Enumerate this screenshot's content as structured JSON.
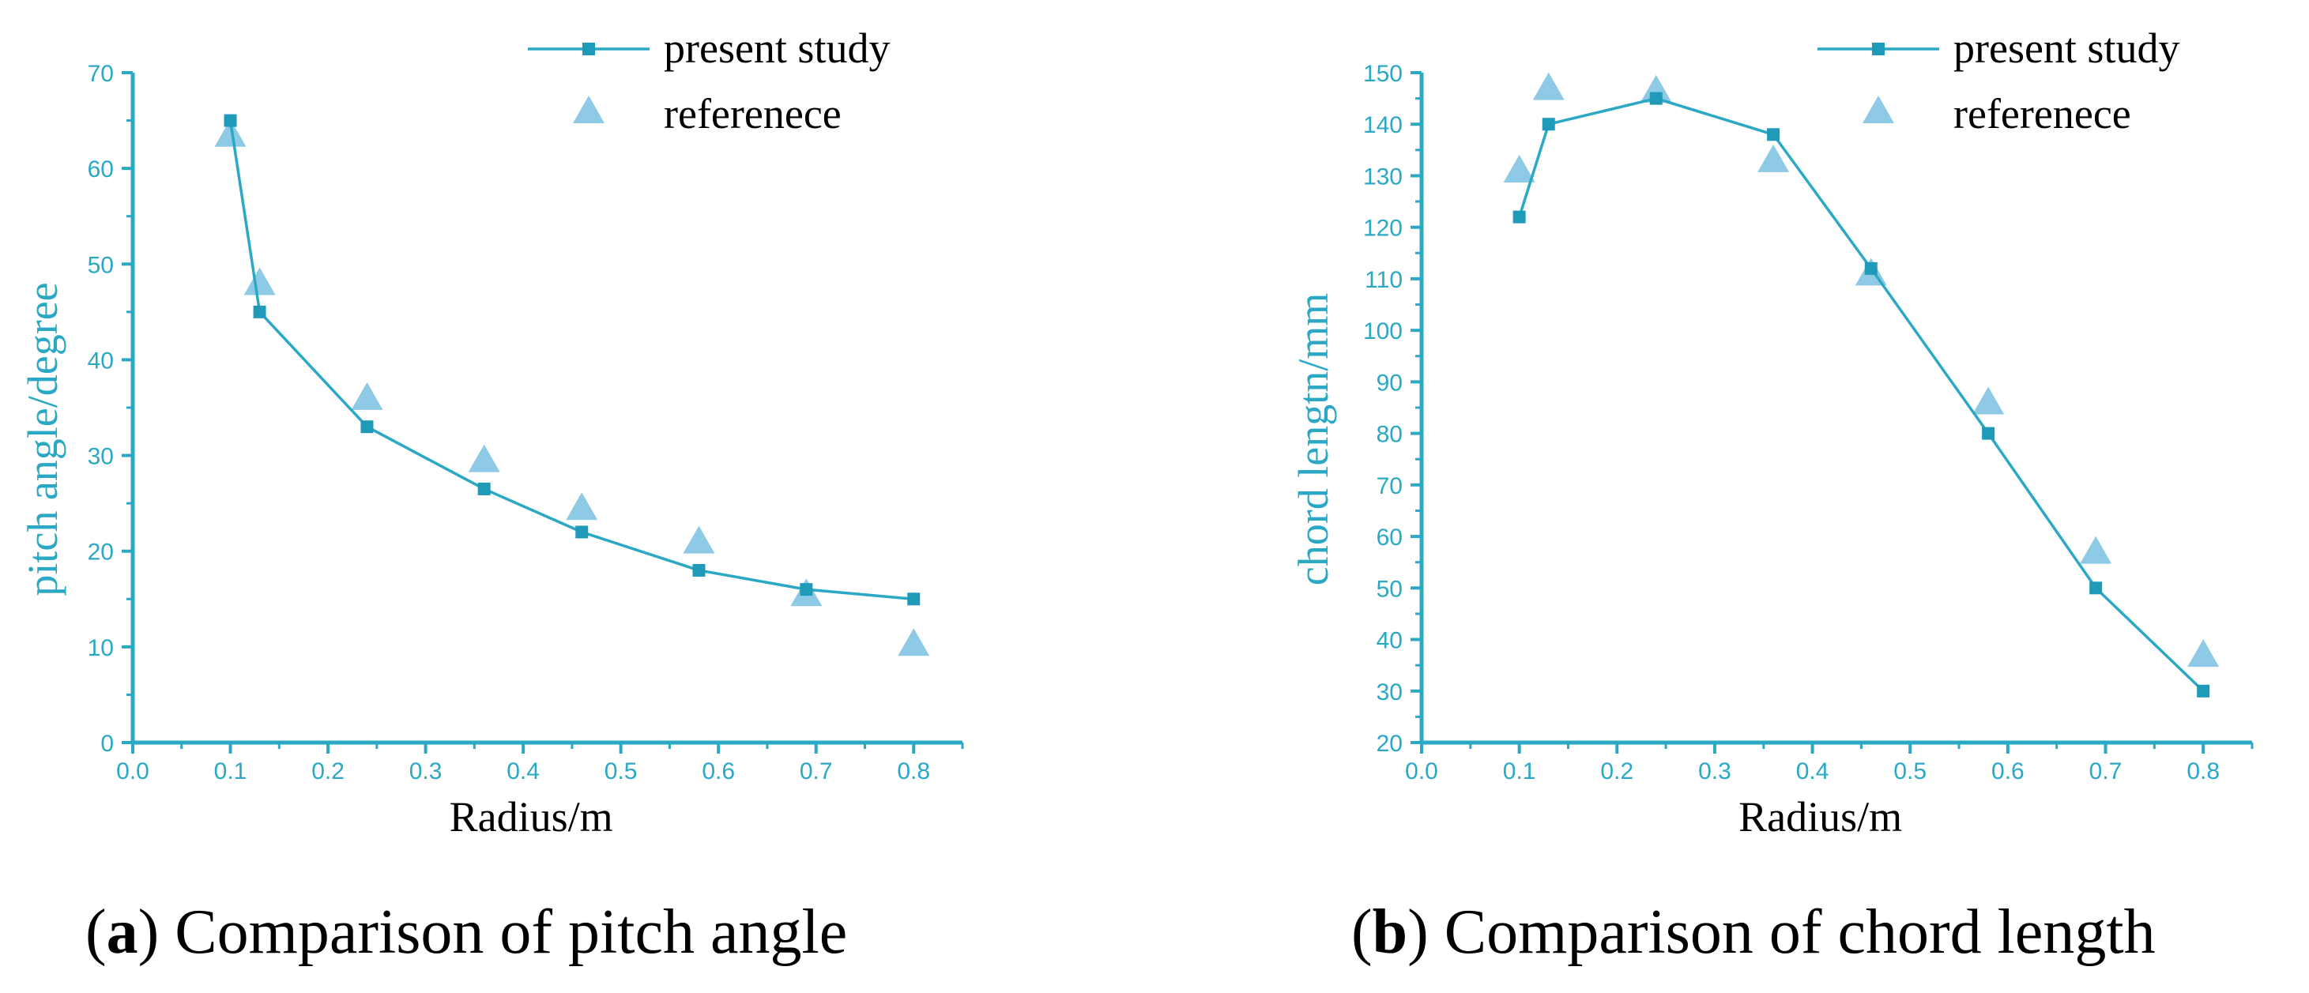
{
  "colors": {
    "axis": "#2aa8c4",
    "line": "#2aa8c4",
    "marker_square": "#1f9ab8",
    "marker_triangle": "#8ecae6",
    "xlabel": "#000000"
  },
  "chart_data": [
    {
      "type": "line",
      "panel": "a",
      "title": "",
      "xlabel": "Radius/m",
      "ylabel": "pitch angle/degree",
      "xlim": [
        0.0,
        0.85
      ],
      "ylim": [
        0,
        70
      ],
      "xticks": [
        "0.0",
        "0.1",
        "0.2",
        "0.3",
        "0.4",
        "0.5",
        "0.6",
        "0.7",
        "0.8"
      ],
      "yticks": [
        "0",
        "10",
        "20",
        "30",
        "40",
        "50",
        "60",
        "70"
      ],
      "legend_position": "top",
      "series": [
        {
          "name": "present study",
          "style": "line-square",
          "x": [
            0.1,
            0.13,
            0.24,
            0.36,
            0.46,
            0.58,
            0.69,
            0.8
          ],
          "y": [
            65,
            45,
            33,
            26.5,
            22,
            18,
            16,
            15
          ]
        },
        {
          "name": "referenece",
          "style": "triangle",
          "x": [
            0.1,
            0.13,
            0.24,
            0.36,
            0.46,
            0.58,
            0.69,
            0.8
          ],
          "y": [
            63.5,
            48,
            36,
            29.5,
            24.5,
            21,
            15.5,
            10.3
          ]
        }
      ]
    },
    {
      "type": "line",
      "panel": "b",
      "title": "",
      "xlabel": "Radius/m",
      "ylabel": "chord lengtn/mm",
      "xlim": [
        0.0,
        0.85
      ],
      "ylim": [
        20,
        150
      ],
      "xticks": [
        "0.0",
        "0.1",
        "0.2",
        "0.3",
        "0.4",
        "0.5",
        "0.6",
        "0.7",
        "0.8"
      ],
      "yticks": [
        "20",
        "30",
        "40",
        "50",
        "60",
        "70",
        "80",
        "90",
        "100",
        "110",
        "120",
        "130",
        "140",
        "150"
      ],
      "legend_position": "top-right",
      "series": [
        {
          "name": "present study",
          "style": "line-square",
          "x": [
            0.1,
            0.13,
            0.24,
            0.36,
            0.46,
            0.58,
            0.69,
            0.8
          ],
          "y": [
            122,
            140,
            145,
            138,
            112,
            80,
            50,
            30
          ]
        },
        {
          "name": "referenece",
          "style": "triangle",
          "x": [
            0.1,
            0.13,
            0.24,
            0.36,
            0.46,
            0.58,
            0.69,
            0.8
          ],
          "y": [
            131,
            147,
            146.5,
            133,
            111,
            86,
            57,
            37
          ]
        }
      ]
    }
  ],
  "captions": [
    {
      "letter": "a",
      "text": "Comparison of pitch angle"
    },
    {
      "letter": "b",
      "text": "Comparison of chord length"
    }
  ]
}
